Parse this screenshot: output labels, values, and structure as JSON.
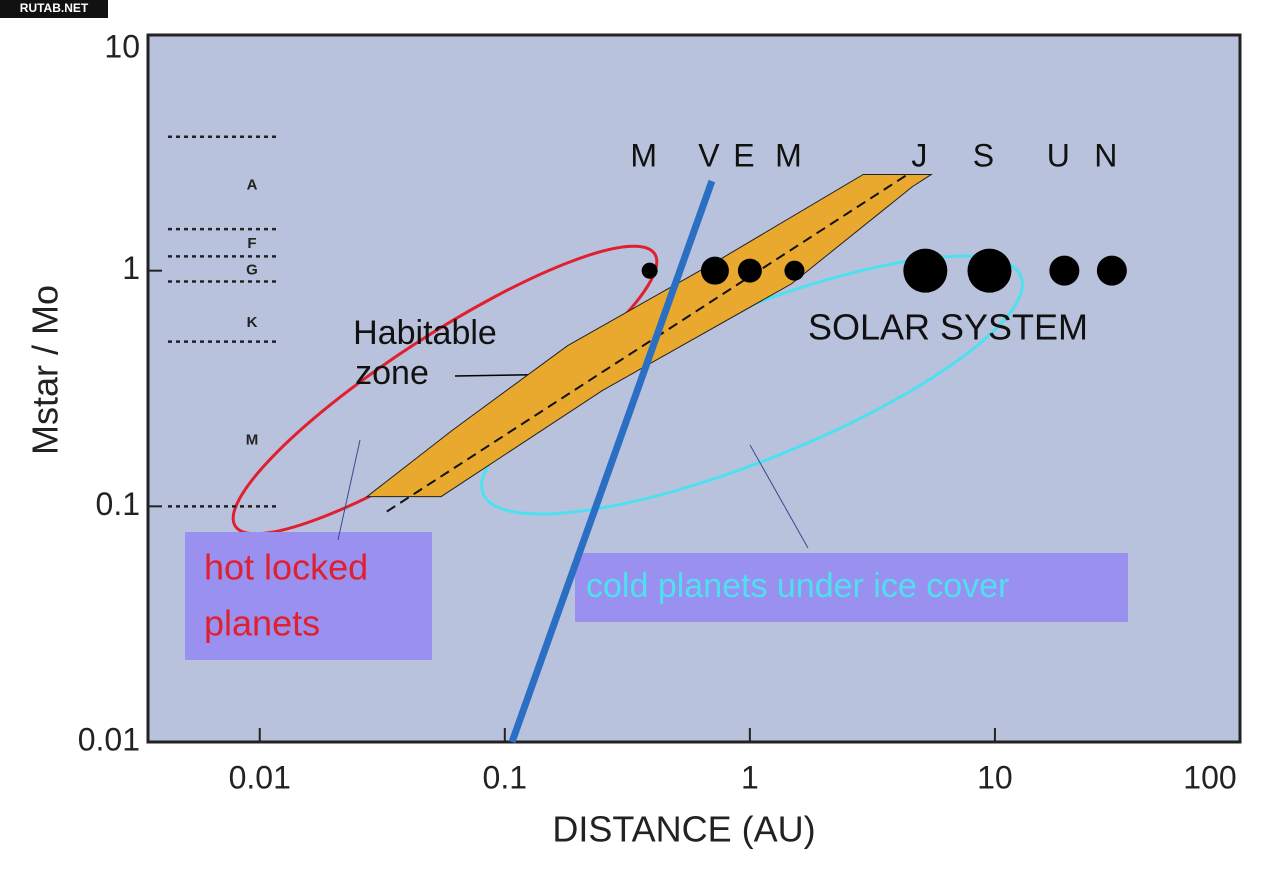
{
  "chart_data": {
    "type": "bubble",
    "watermark": "RUTAB.NET",
    "x_label": "DISTANCE (AU)",
    "y_label": "Mstar / Mo",
    "log_x": true,
    "log_y": true,
    "xlim": [
      0.0035,
      100
    ],
    "ylim": [
      0.01,
      10
    ],
    "xticks": [
      0.01,
      0.1,
      1,
      10,
      100
    ],
    "yticks": [
      0.01,
      0.1,
      1,
      10
    ],
    "series": [
      {
        "name": "SOLAR SYSTEM",
        "color": "#000000",
        "labels": [
          "M",
          "V",
          "E",
          "M",
          "J",
          "S",
          "U",
          "N"
        ],
        "x": [
          0.39,
          0.72,
          1,
          1.52,
          5.2,
          9.5,
          19.2,
          30
        ],
        "values": [
          1,
          1,
          1,
          1,
          1,
          1,
          1,
          1
        ],
        "sizes": [
          8,
          14,
          12,
          10,
          22,
          22,
          15,
          15
        ]
      }
    ],
    "star_classes": {
      "labels": [
        "A",
        "F",
        "G",
        "K",
        "M"
      ],
      "y": [
        2.3,
        1.3,
        1.0,
        0.6,
        0.19
      ],
      "boundaries": [
        3.7,
        1.5,
        1.15,
        0.9,
        0.5,
        0.1
      ]
    },
    "habitable_zone": {
      "color": "#e8a92e",
      "label": [
        "Habitable",
        "zone"
      ],
      "x": [
        0.0274,
        0.055,
        0.25,
        1.48,
        4.6,
        5.5,
        2.9,
        0.77,
        0.18,
        0.061
      ],
      "y": [
        0.11,
        0.11,
        0.31,
        0.88,
        2.27,
        2.56,
        2.56,
        1.13,
        0.48,
        0.21
      ],
      "center_x": [
        0.033,
        4.4
      ],
      "center_y": [
        0.095,
        2.56
      ]
    },
    "tidal_lock_line": {
      "color": "#2b6fc4",
      "x": [
        0.7,
        0.107
      ],
      "y": [
        2.4,
        0.01
      ]
    },
    "annotations": {
      "hot": [
        "hot locked",
        "planets"
      ],
      "cold": "cold planets under ice cover"
    }
  }
}
